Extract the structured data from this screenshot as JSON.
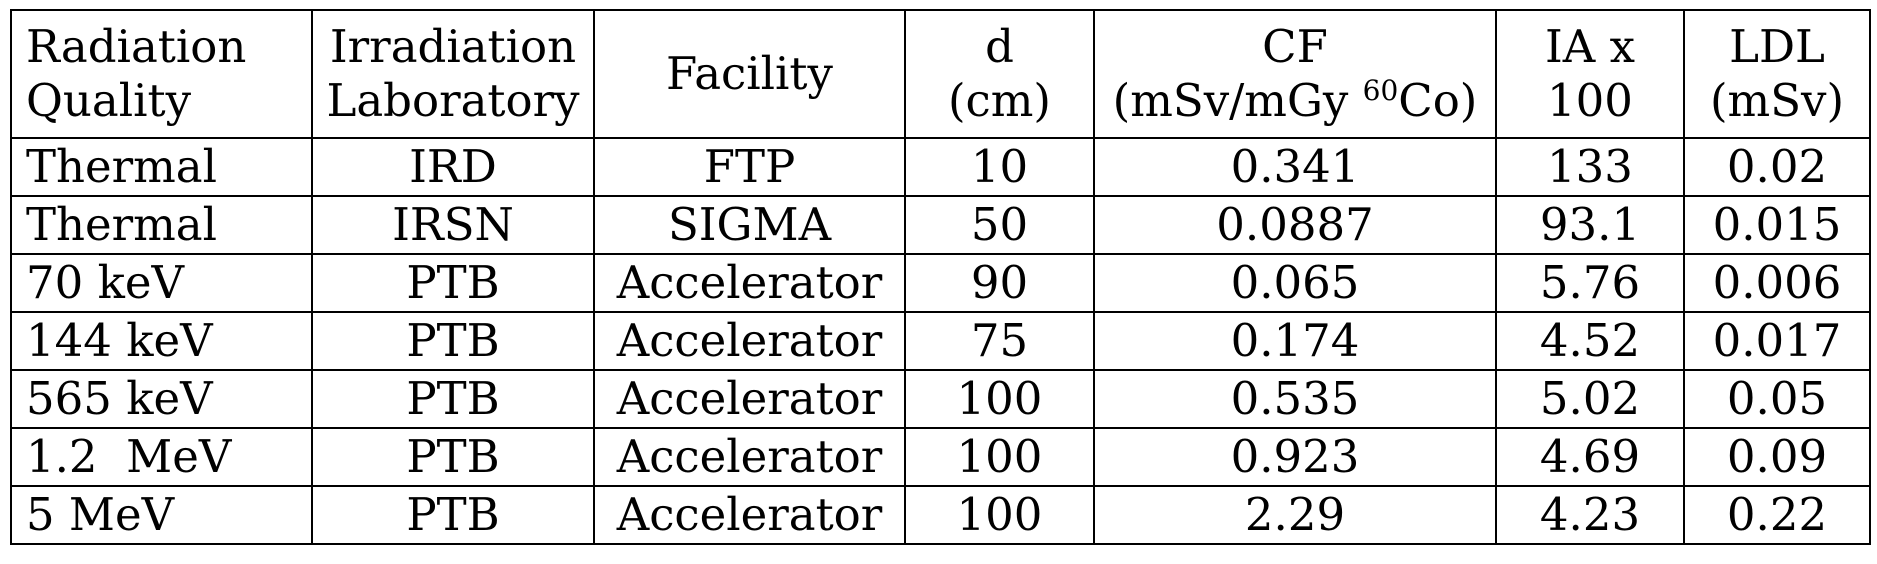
{
  "header": {
    "radiation_quality": [
      "Radiation",
      "Quality"
    ],
    "irradiation_laboratory": [
      "Irradiation",
      "Laboratory"
    ],
    "facility": "Facility",
    "d": [
      "d",
      "(cm)"
    ],
    "cf": {
      "line1": "CF",
      "line2_pre": "(mSv/mGy ",
      "line2_sup": "60",
      "line2_post": "Co)"
    },
    "ia": [
      "IA x",
      "100"
    ],
    "ldl": [
      "LDL",
      "(mSv)"
    ]
  },
  "rows": [
    {
      "quality": "Thermal",
      "lab": "IRD",
      "facility": "FTP",
      "d": "10",
      "cf": "0.341",
      "ia": "133",
      "ldl": "0.02"
    },
    {
      "quality": "Thermal",
      "lab": "IRSN",
      "facility": "SIGMA",
      "d": "50",
      "cf": "0.0887",
      "ia": "93.1",
      "ldl": "0.015"
    },
    {
      "quality": "70 keV",
      "lab": "PTB",
      "facility": "Accelerator",
      "d": "90",
      "cf": "0.065",
      "ia": "5.76",
      "ldl": "0.006"
    },
    {
      "quality": "144 keV",
      "lab": "PTB",
      "facility": "Accelerator",
      "d": "75",
      "cf": "0.174",
      "ia": "4.52",
      "ldl": "0.017"
    },
    {
      "quality": "565 keV",
      "lab": "PTB",
      "facility": "Accelerator",
      "d": "100",
      "cf": "0.535",
      "ia": "5.02",
      "ldl": "0.05"
    },
    {
      "quality": "1.2  MeV",
      "lab": "PTB",
      "facility": "Accelerator",
      "d": "100",
      "cf": "0.923",
      "ia": "4.69",
      "ldl": "0.09"
    },
    {
      "quality": "5 MeV",
      "lab": "PTB",
      "facility": "Accelerator",
      "d": "100",
      "cf": "2.29",
      "ia": "4.23",
      "ldl": "0.22"
    }
  ]
}
